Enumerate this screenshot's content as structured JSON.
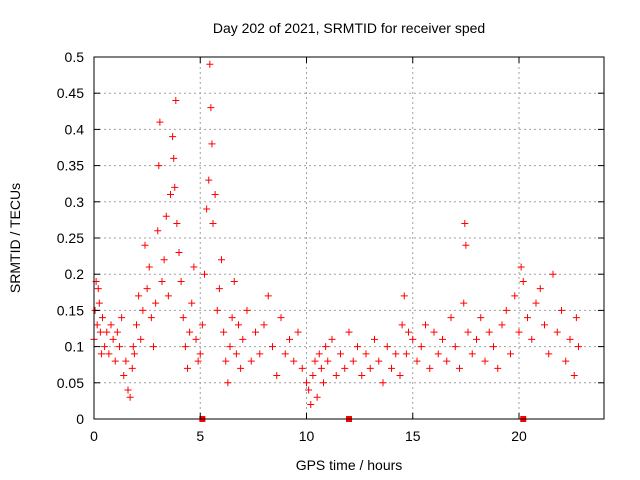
{
  "colors": {
    "point": "#ff0000",
    "grid": "#a0a0a0",
    "axis": "#000000",
    "background": "#ffffff"
  },
  "chart_data": {
    "type": "scatter",
    "title": "Day 202 of 2021, SRMTID for receiver sped",
    "xlabel": "GPS time / hours",
    "ylabel": "SRMTID / TECUs",
    "xlim": [
      0,
      24
    ],
    "ylim": [
      0,
      0.5
    ],
    "xticks": [
      0,
      5,
      10,
      15,
      20
    ],
    "yticks": [
      0,
      0.05,
      0.1,
      0.15,
      0.2,
      0.25,
      0.3,
      0.35,
      0.4,
      0.45,
      0.5
    ],
    "xtick_labels": [
      "0",
      "5",
      "10",
      "15",
      "20"
    ],
    "ytick_labels": [
      "0",
      "0.05",
      "0.1",
      "0.15",
      "0.2",
      "0.25",
      "0.3",
      "0.35",
      "0.4",
      "0.45",
      "0.5"
    ],
    "grid": true,
    "marker": "+",
    "series": [
      {
        "name": "SRMTID",
        "x": [
          0.0,
          0.05,
          0.1,
          0.15,
          0.2,
          0.25,
          0.3,
          0.35,
          0.4,
          0.5,
          0.6,
          0.7,
          0.8,
          0.9,
          1.0,
          1.1,
          1.2,
          1.3,
          1.4,
          1.5,
          1.6,
          1.7,
          1.8,
          1.85,
          1.9,
          2.0,
          2.1,
          2.2,
          2.3,
          2.4,
          2.5,
          2.6,
          2.7,
          2.8,
          2.9,
          3.0,
          3.05,
          3.1,
          3.2,
          3.3,
          3.4,
          3.5,
          3.6,
          3.7,
          3.75,
          3.8,
          3.85,
          3.9,
          4.0,
          4.1,
          4.2,
          4.3,
          4.4,
          4.5,
          4.6,
          4.7,
          4.8,
          4.9,
          5.0,
          5.1,
          5.2,
          5.3,
          5.4,
          5.45,
          5.5,
          5.55,
          5.6,
          5.7,
          5.8,
          5.9,
          6.0,
          6.1,
          6.2,
          6.3,
          6.4,
          6.5,
          6.6,
          6.7,
          6.8,
          6.9,
          7.0,
          7.2,
          7.4,
          7.6,
          7.8,
          8.0,
          8.2,
          8.4,
          8.6,
          8.8,
          9.0,
          9.2,
          9.4,
          9.6,
          9.8,
          10.0,
          10.1,
          10.2,
          10.3,
          10.4,
          10.5,
          10.6,
          10.7,
          10.8,
          10.9,
          11.0,
          11.2,
          11.4,
          11.6,
          11.8,
          12.0,
          12.2,
          12.4,
          12.6,
          12.8,
          13.0,
          13.2,
          13.4,
          13.6,
          13.8,
          14.0,
          14.2,
          14.4,
          14.5,
          14.6,
          14.7,
          14.8,
          15.0,
          15.2,
          15.4,
          15.6,
          15.8,
          16.0,
          16.2,
          16.4,
          16.6,
          16.8,
          17.0,
          17.2,
          17.4,
          17.45,
          17.5,
          17.6,
          17.8,
          18.0,
          18.2,
          18.4,
          18.6,
          18.8,
          19.0,
          19.2,
          19.4,
          19.6,
          19.8,
          20.0,
          20.1,
          20.2,
          20.4,
          20.6,
          20.8,
          21.0,
          21.2,
          21.4,
          21.6,
          21.8,
          22.0,
          22.2,
          22.4,
          22.6,
          22.7,
          22.8
        ],
        "y": [
          0.11,
          0.15,
          0.19,
          0.13,
          0.18,
          0.16,
          0.12,
          0.09,
          0.14,
          0.1,
          0.12,
          0.09,
          0.13,
          0.11,
          0.08,
          0.12,
          0.1,
          0.14,
          0.06,
          0.08,
          0.04,
          0.03,
          0.07,
          0.1,
          0.09,
          0.13,
          0.17,
          0.11,
          0.15,
          0.24,
          0.18,
          0.21,
          0.14,
          0.1,
          0.16,
          0.26,
          0.35,
          0.41,
          0.19,
          0.22,
          0.28,
          0.17,
          0.31,
          0.39,
          0.36,
          0.32,
          0.44,
          0.27,
          0.23,
          0.19,
          0.14,
          0.1,
          0.07,
          0.12,
          0.16,
          0.21,
          0.11,
          0.08,
          0.09,
          0.13,
          0.2,
          0.29,
          0.33,
          0.49,
          0.43,
          0.38,
          0.27,
          0.31,
          0.15,
          0.18,
          0.22,
          0.12,
          0.08,
          0.05,
          0.1,
          0.14,
          0.19,
          0.09,
          0.13,
          0.07,
          0.11,
          0.15,
          0.08,
          0.12,
          0.09,
          0.13,
          0.17,
          0.1,
          0.06,
          0.14,
          0.09,
          0.11,
          0.08,
          0.12,
          0.07,
          0.05,
          0.04,
          0.02,
          0.06,
          0.08,
          0.03,
          0.09,
          0.07,
          0.05,
          0.1,
          0.08,
          0.11,
          0.06,
          0.09,
          0.07,
          0.12,
          0.08,
          0.1,
          0.06,
          0.09,
          0.07,
          0.11,
          0.08,
          0.05,
          0.1,
          0.07,
          0.09,
          0.06,
          0.13,
          0.17,
          0.09,
          0.12,
          0.11,
          0.08,
          0.1,
          0.13,
          0.07,
          0.12,
          0.09,
          0.11,
          0.08,
          0.14,
          0.1,
          0.07,
          0.16,
          0.27,
          0.24,
          0.12,
          0.09,
          0.11,
          0.14,
          0.08,
          0.12,
          0.1,
          0.07,
          0.13,
          0.15,
          0.09,
          0.17,
          0.12,
          0.21,
          0.19,
          0.14,
          0.11,
          0.16,
          0.18,
          0.13,
          0.09,
          0.2,
          0.12,
          0.15,
          0.08,
          0.11,
          0.06,
          0.14,
          0.1
        ]
      }
    ],
    "zero_markers_x": [
      5.1,
      12.0,
      20.2
    ]
  }
}
